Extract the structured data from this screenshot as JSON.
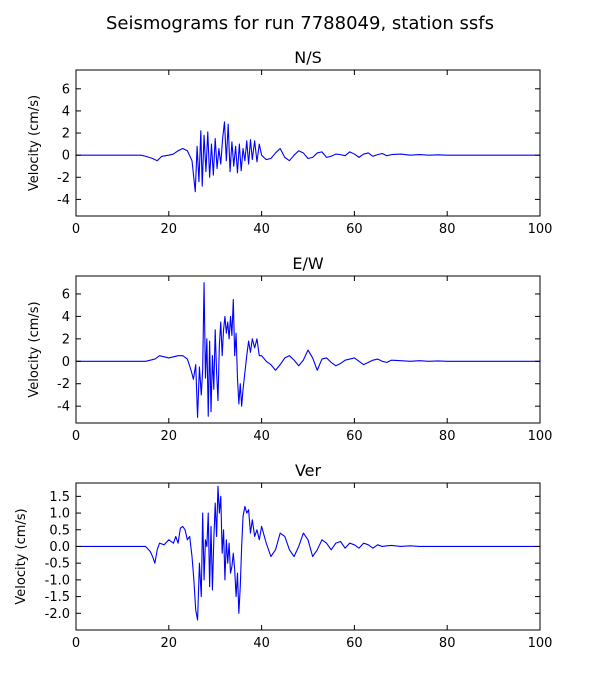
{
  "figure": {
    "suptitle": "Seismograms for run 7788049, station ssfs"
  },
  "chart_data": [
    {
      "type": "line",
      "title": "N/S",
      "xlabel": "",
      "ylabel": "Velocity (cm/s)",
      "xlim": [
        0,
        100
      ],
      "ylim": [
        -5.5,
        7.7
      ],
      "xticks": [
        0,
        20,
        40,
        60,
        80,
        100
      ],
      "yticks": [
        -4,
        -2,
        0,
        2,
        4,
        6
      ],
      "grid": false,
      "color": "#0000ff",
      "series": [
        {
          "x": [
            0,
            14,
            15,
            16.5,
            17.5,
            18.5,
            20,
            21,
            22,
            23,
            24,
            25,
            25.7,
            26.1,
            26.5,
            26.9,
            27.2,
            27.6,
            28,
            28.4,
            28.8,
            29.2,
            29.6,
            30,
            30.4,
            30.8,
            31.2,
            31.6,
            32,
            32.4,
            32.8,
            33.2,
            33.6,
            34,
            34.4,
            34.8,
            35.2,
            35.6,
            36,
            36.4,
            36.8,
            37.2,
            37.6,
            38,
            38.5,
            39,
            39.5,
            40,
            41,
            42,
            43,
            44,
            45,
            46,
            47,
            48,
            49,
            50,
            51,
            52,
            53,
            54,
            55,
            56,
            57,
            58,
            59,
            60,
            61,
            62,
            63,
            64,
            65,
            66,
            67,
            68,
            70,
            72,
            74,
            76,
            78,
            80,
            85,
            90,
            100
          ],
          "y": [
            0,
            0,
            -0.1,
            -0.3,
            -0.5,
            -0.1,
            0,
            0.1,
            0.4,
            0.6,
            0.4,
            -0.5,
            -3.3,
            0.8,
            -2.4,
            2.2,
            -2.8,
            1.8,
            -1.5,
            2.1,
            -2.0,
            1.0,
            -1.8,
            1.5,
            -1.2,
            0.6,
            -0.8,
            1.5,
            3.0,
            -0.5,
            2.8,
            -1.5,
            1.2,
            -1.0,
            0.8,
            -1.6,
            1.0,
            -1.4,
            0.6,
            -0.5,
            1.3,
            -0.8,
            1.4,
            -0.4,
            1.3,
            -0.6,
            1.0,
            0,
            -0.4,
            -0.3,
            0.2,
            0.6,
            -0.2,
            -0.5,
            0,
            0.4,
            0.2,
            -0.3,
            -0.2,
            0.2,
            0.3,
            -0.2,
            -0.1,
            0.1,
            0.05,
            -0.05,
            0.3,
            0.1,
            -0.2,
            0.1,
            0.2,
            -0.1,
            0.05,
            0.15,
            -0.05,
            0.05,
            0.1,
            0,
            0.05,
            0,
            0.03,
            0,
            0,
            0,
            0
          ]
        }
      ]
    },
    {
      "type": "line",
      "title": "E/W",
      "xlabel": "",
      "ylabel": "Velocity (cm/s)",
      "xlim": [
        0,
        100
      ],
      "ylim": [
        -5.5,
        7.6
      ],
      "xticks": [
        0,
        20,
        40,
        60,
        80,
        100
      ],
      "yticks": [
        -4,
        -2,
        0,
        2,
        4,
        6
      ],
      "grid": false,
      "color": "#0000ff",
      "series": [
        {
          "x": [
            0,
            15,
            16,
            17,
            18,
            19,
            20,
            21,
            22,
            23,
            24,
            24.8,
            25.3,
            25.8,
            26.2,
            26.6,
            27.0,
            27.3,
            27.6,
            27.9,
            28.2,
            28.5,
            28.8,
            29.1,
            29.4,
            29.7,
            30.0,
            30.3,
            30.6,
            30.9,
            31.2,
            31.5,
            31.8,
            32.1,
            32.4,
            32.7,
            33.0,
            33.3,
            33.6,
            33.9,
            34.2,
            34.5,
            34.8,
            35.1,
            35.4,
            35.7,
            36.0,
            36.4,
            36.8,
            37.2,
            37.6,
            38.0,
            38.5,
            39.0,
            39.5,
            40,
            41,
            42,
            43,
            44,
            45,
            46,
            47,
            48,
            49,
            50,
            51,
            52,
            53,
            54,
            55,
            56,
            57,
            58,
            59,
            60,
            61,
            62,
            63,
            64,
            65,
            66,
            67,
            68,
            70,
            72,
            74,
            76,
            78,
            80,
            85,
            90,
            100
          ],
          "y": [
            0,
            0,
            0.1,
            0.2,
            0.5,
            0.4,
            0.3,
            0.4,
            0.5,
            0.5,
            0.2,
            -0.8,
            -1.6,
            -0.3,
            -5.0,
            -0.5,
            -3.0,
            -0.8,
            7.0,
            -1.5,
            2.0,
            -4.9,
            1.8,
            -4.5,
            0.5,
            -2.5,
            2.8,
            -1.0,
            -3.5,
            1.5,
            3.5,
            0.5,
            2.8,
            4.0,
            2.5,
            3.5,
            2.0,
            4.0,
            2.3,
            5.5,
            0.5,
            2.5,
            -1.5,
            -3.8,
            -2.0,
            -4.0,
            -2.5,
            -1.0,
            0.5,
            1.8,
            0.8,
            2.0,
            1.2,
            2.0,
            0.5,
            0.5,
            0,
            -0.3,
            -0.8,
            -0.3,
            0.3,
            0.5,
            0.1,
            -0.4,
            0.1,
            1.0,
            0.3,
            -0.8,
            0.2,
            0.3,
            -0.1,
            -0.4,
            -0.2,
            0.1,
            0.2,
            0.3,
            0.0,
            -0.3,
            -0.1,
            0.1,
            0.2,
            0.0,
            -0.1,
            0.1,
            0.05,
            0,
            0.05,
            0,
            0.03,
            0,
            0,
            0,
            0
          ]
        }
      ]
    },
    {
      "type": "line",
      "title": "Ver",
      "xlabel": "",
      "ylabel": "Velocity (cm/s)",
      "xlim": [
        0,
        100
      ],
      "ylim": [
        -2.5,
        1.9
      ],
      "xticks": [
        0,
        20,
        40,
        60,
        80,
        100
      ],
      "yticks": [
        -2.0,
        -1.5,
        -1.0,
        -0.5,
        0.0,
        0.5,
        1.0,
        1.5
      ],
      "tick_format_decimals": 1,
      "grid": false,
      "color": "#0000ff",
      "series": [
        {
          "x": [
            0,
            14,
            15,
            16,
            16.5,
            17,
            17.5,
            18,
            19,
            20,
            21,
            21.5,
            22,
            22.5,
            23,
            23.5,
            24,
            24.5,
            25,
            25.4,
            25.8,
            26.2,
            26.6,
            27.0,
            27.3,
            27.6,
            27.9,
            28.2,
            28.5,
            28.8,
            29.1,
            29.4,
            29.7,
            30.0,
            30.3,
            30.6,
            30.9,
            31.2,
            31.5,
            31.8,
            32.1,
            32.4,
            32.7,
            33.0,
            33.3,
            33.6,
            33.9,
            34.2,
            34.5,
            34.8,
            35.1,
            35.4,
            35.7,
            36.0,
            36.4,
            36.8,
            37.2,
            37.6,
            38.0,
            38.5,
            39.0,
            39.5,
            40,
            41,
            42,
            43,
            44,
            45,
            46,
            47,
            48,
            49,
            50,
            51,
            52,
            53,
            54,
            55,
            56,
            57,
            58,
            59,
            60,
            61,
            62,
            63,
            64,
            65,
            66,
            67,
            68,
            70,
            72,
            74,
            76,
            78,
            80,
            85,
            90,
            100
          ],
          "y": [
            0,
            0,
            0,
            -0.15,
            -0.3,
            -0.5,
            -0.1,
            0.1,
            0.05,
            0.2,
            0.1,
            0.3,
            0.1,
            0.55,
            0.6,
            0.5,
            0.2,
            0.3,
            -0.3,
            -1.0,
            -1.9,
            -2.2,
            -0.5,
            -1.5,
            1.0,
            -1.0,
            0.2,
            0.0,
            1.0,
            -1.2,
            0.6,
            -1.3,
            0.2,
            1.3,
            0.3,
            1.8,
            1.0,
            1.5,
            -0.2,
            0.5,
            -1.0,
            0.2,
            -0.5,
            0.1,
            -0.8,
            -0.6,
            -0.2,
            -0.7,
            -1.5,
            -0.8,
            -2.0,
            -1.2,
            0.0,
            0.9,
            1.2,
            1.0,
            1.1,
            0.4,
            0.8,
            0.3,
            0.5,
            0.2,
            0.6,
            0.1,
            -0.3,
            -0.1,
            0.4,
            0.3,
            -0.1,
            -0.3,
            0.0,
            0.4,
            0.2,
            -0.3,
            -0.1,
            0.2,
            0.1,
            -0.1,
            0.1,
            0.15,
            -0.05,
            0.1,
            0.05,
            -0.05,
            0.1,
            0.05,
            -0.05,
            0.05,
            0.0,
            0.02,
            0.03,
            0.0,
            0.02,
            0.0,
            0.0,
            0.0,
            0,
            0,
            0,
            0
          ]
        }
      ]
    }
  ]
}
